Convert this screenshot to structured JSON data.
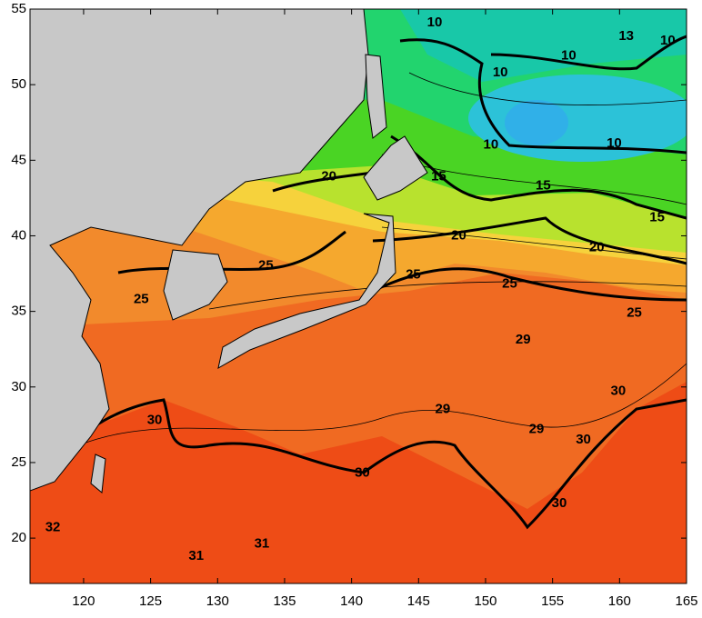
{
  "map": {
    "xlim": [
      116,
      165
    ],
    "ylim": [
      17,
      55
    ],
    "xticks": [
      120,
      125,
      130,
      135,
      140,
      145,
      150,
      155,
      160,
      165
    ],
    "yticks": [
      20,
      25,
      30,
      35,
      40,
      45,
      50,
      55
    ],
    "contour_labels": [
      {
        "value": 10,
        "lon": 146.2,
        "lat": 54.1
      },
      {
        "value": 13,
        "lon": 160.5,
        "lat": 53.2
      },
      {
        "value": 10,
        "lon": 163.6,
        "lat": 52.9
      },
      {
        "value": 10,
        "lon": 151.1,
        "lat": 50.8
      },
      {
        "value": 10,
        "lon": 156.2,
        "lat": 51.9
      },
      {
        "value": 10,
        "lon": 150.4,
        "lat": 46.0
      },
      {
        "value": 10,
        "lon": 159.6,
        "lat": 46.1
      },
      {
        "value": 15,
        "lon": 146.5,
        "lat": 43.9
      },
      {
        "value": 15,
        "lon": 154.3,
        "lat": 43.3
      },
      {
        "value": 15,
        "lon": 162.8,
        "lat": 41.2
      },
      {
        "value": 20,
        "lon": 138.3,
        "lat": 43.9
      },
      {
        "value": 20,
        "lon": 148.0,
        "lat": 40.0
      },
      {
        "value": 20,
        "lon": 158.3,
        "lat": 39.2
      },
      {
        "value": 25,
        "lon": 133.6,
        "lat": 38.0
      },
      {
        "value": 25,
        "lon": 124.3,
        "lat": 35.8
      },
      {
        "value": 25,
        "lon": 144.6,
        "lat": 37.4
      },
      {
        "value": 25,
        "lon": 151.8,
        "lat": 36.8
      },
      {
        "value": 25,
        "lon": 161.1,
        "lat": 34.9
      },
      {
        "value": 29,
        "lon": 152.8,
        "lat": 33.1
      },
      {
        "value": 29,
        "lon": 146.8,
        "lat": 28.5
      },
      {
        "value": 29,
        "lon": 153.8,
        "lat": 27.2
      },
      {
        "value": 30,
        "lon": 159.9,
        "lat": 29.7
      },
      {
        "value": 30,
        "lon": 125.3,
        "lat": 27.8
      },
      {
        "value": 30,
        "lon": 140.8,
        "lat": 24.3
      },
      {
        "value": 30,
        "lon": 157.3,
        "lat": 26.5
      },
      {
        "value": 30,
        "lon": 155.5,
        "lat": 22.3
      },
      {
        "value": 32,
        "lon": 117.7,
        "lat": 20.7
      },
      {
        "value": 31,
        "lon": 128.4,
        "lat": 18.8
      },
      {
        "value": 31,
        "lon": 133.3,
        "lat": 19.6
      }
    ]
  }
}
